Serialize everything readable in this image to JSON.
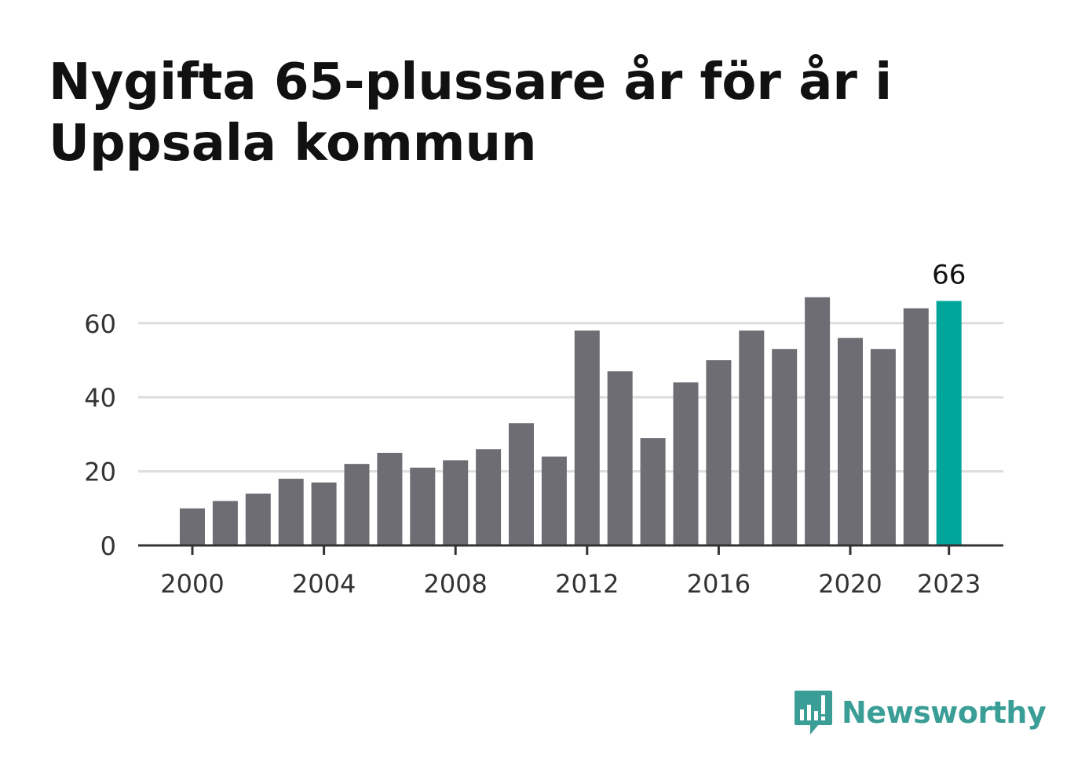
{
  "title": "Nygifta 65-plussare år för år i Uppsala kommun",
  "logo_text": "Newsworthy",
  "colors": {
    "bar": "#6e6d74",
    "highlight": "#00a59a",
    "grid": "#dddddd",
    "axis": "#333333",
    "logo": "#3a9e96"
  },
  "chart_data": {
    "type": "bar",
    "categories": [
      "2000",
      "2001",
      "2002",
      "2003",
      "2004",
      "2005",
      "2006",
      "2007",
      "2008",
      "2009",
      "2010",
      "2011",
      "2012",
      "2013",
      "2014",
      "2015",
      "2016",
      "2017",
      "2018",
      "2019",
      "2020",
      "2021",
      "2022",
      "2023"
    ],
    "values": [
      10,
      12,
      14,
      18,
      17,
      22,
      25,
      21,
      23,
      26,
      33,
      24,
      58,
      47,
      29,
      44,
      50,
      58,
      53,
      67,
      56,
      53,
      64,
      66
    ],
    "highlight_category": "2023",
    "data_labels": [
      {
        "category": "2023",
        "text": "66"
      }
    ],
    "x_tick_labels": [
      "2000",
      "2004",
      "2008",
      "2012",
      "2016",
      "2020",
      "2023"
    ],
    "y_ticks": [
      0,
      20,
      40,
      60
    ],
    "ylim": [
      0,
      70
    ],
    "grid": true,
    "xlabel": "",
    "ylabel": ""
  }
}
